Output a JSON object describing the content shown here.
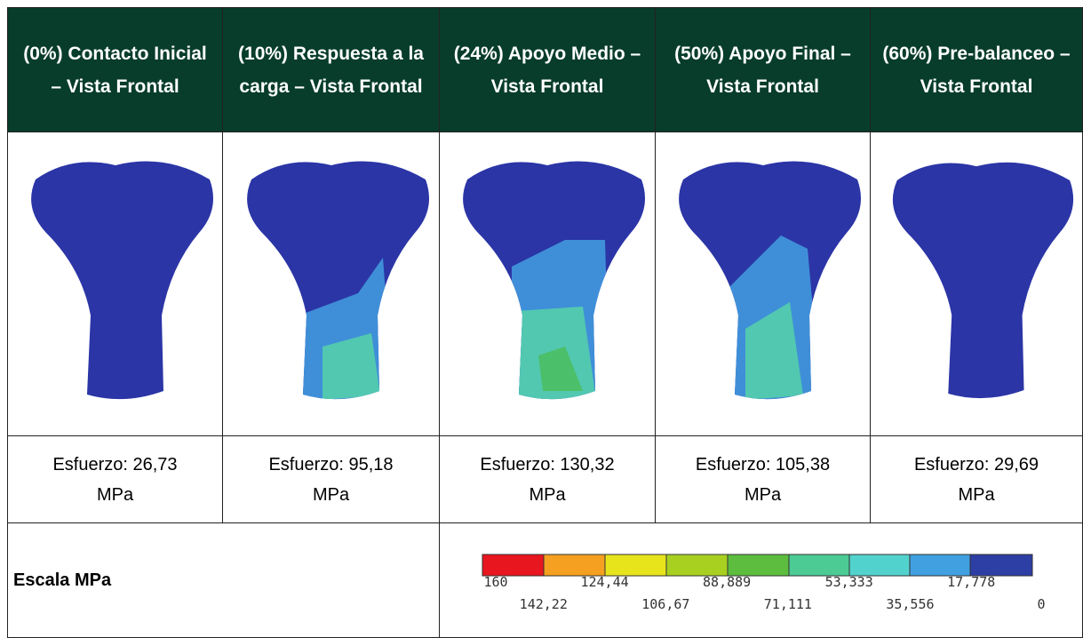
{
  "header": {
    "columns": [
      "(0%) Contacto Inicial – Vista Frontal",
      "(10%) Respuesta a la carga – Vista Frontal",
      "(24%) Apoyo Medio – Vista Frontal",
      "(50%) Apoyo Final – Vista Frontal",
      "(60%) Pre-balanceo – Vista Frontal"
    ]
  },
  "results": [
    "Esfuerzo: 26,73 MPa",
    "Esfuerzo: 95,18 MPa",
    "Esfuerzo: 130,32 MPa",
    "Esfuerzo: 105,38 MPa",
    "Esfuerzo: 29,69 MPa"
  ],
  "scale": {
    "label": "Escala MPa",
    "ticks": [
      "160",
      "142,22",
      "124,44",
      "106,67",
      "88,889",
      "71,111",
      "53,333",
      "35,556",
      "17,778",
      "0"
    ]
  }
}
